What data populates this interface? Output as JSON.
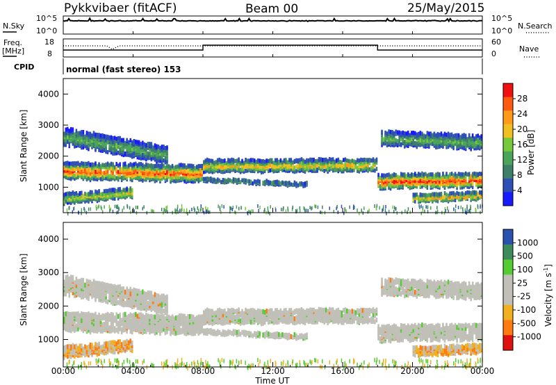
{
  "header": {
    "title": "Pykkvibaer (fitACF)",
    "beam": "Beam 00",
    "date": "25/May/2015"
  },
  "labels": {
    "nsky": "N.Sky",
    "nsearch": "N.Search",
    "freq_line1": "Freq.",
    "freq_line2": "[MHz]",
    "nave": "Nave",
    "cpid": "CPID",
    "cpid_value": "normal (fast stereo) 153"
  },
  "noise_panel": {
    "left_ticks": [
      "10^5",
      "10^0"
    ],
    "right_ticks": [
      "10^5",
      "10^0"
    ]
  },
  "freq_panel": {
    "left_ticks": [
      "18",
      "8"
    ],
    "right_ticks": [
      "60",
      "0"
    ]
  },
  "colors": {
    "power": [
      "#1a1aff",
      "#2e4fb5",
      "#3f7f6a",
      "#4aa55a",
      "#78c83c",
      "#f0c020",
      "#ff9a1a",
      "#ff5a10",
      "#f01010"
    ],
    "velocity_neg": [
      "#e01010",
      "#ff7a10",
      "#f0b020"
    ],
    "velocity_gray": "#c0c0b8",
    "velocity_pos": [
      "#55cc33",
      "#3d8a5a",
      "#2a50b0"
    ]
  },
  "chart_data": [
    {
      "type": "heatmap",
      "name": "power",
      "ylabel": "Slant Range [km]",
      "ylim": [
        180,
        4500
      ],
      "yticks": [
        "1000",
        "2000",
        "3000",
        "4000"
      ],
      "colorbar_label": "Power [dB]",
      "colorbar_ticks": [
        "4",
        "8",
        "12",
        "16",
        "20",
        "24",
        "28"
      ],
      "clim": [
        0,
        30
      ]
    },
    {
      "type": "heatmap",
      "name": "velocity",
      "ylabel": "Slant Range [km]",
      "ylim": [
        180,
        4500
      ],
      "yticks": [
        "1000",
        "2000",
        "3000",
        "4000"
      ],
      "colorbar_label": "Velocity [m s",
      "colorbar_label_sup": "-1",
      "colorbar_label_end": "]",
      "colorbar_ticks": [
        "1000",
        "500",
        "100",
        "25",
        "-25",
        "-100",
        "-500",
        "-1000"
      ]
    }
  ],
  "time_axis": {
    "label": "Time UT",
    "ticks": [
      "00:00",
      "04:00",
      "08:00",
      "12:00",
      "16:00",
      "20:00",
      "00:00"
    ],
    "range_hours": [
      0,
      24
    ]
  }
}
